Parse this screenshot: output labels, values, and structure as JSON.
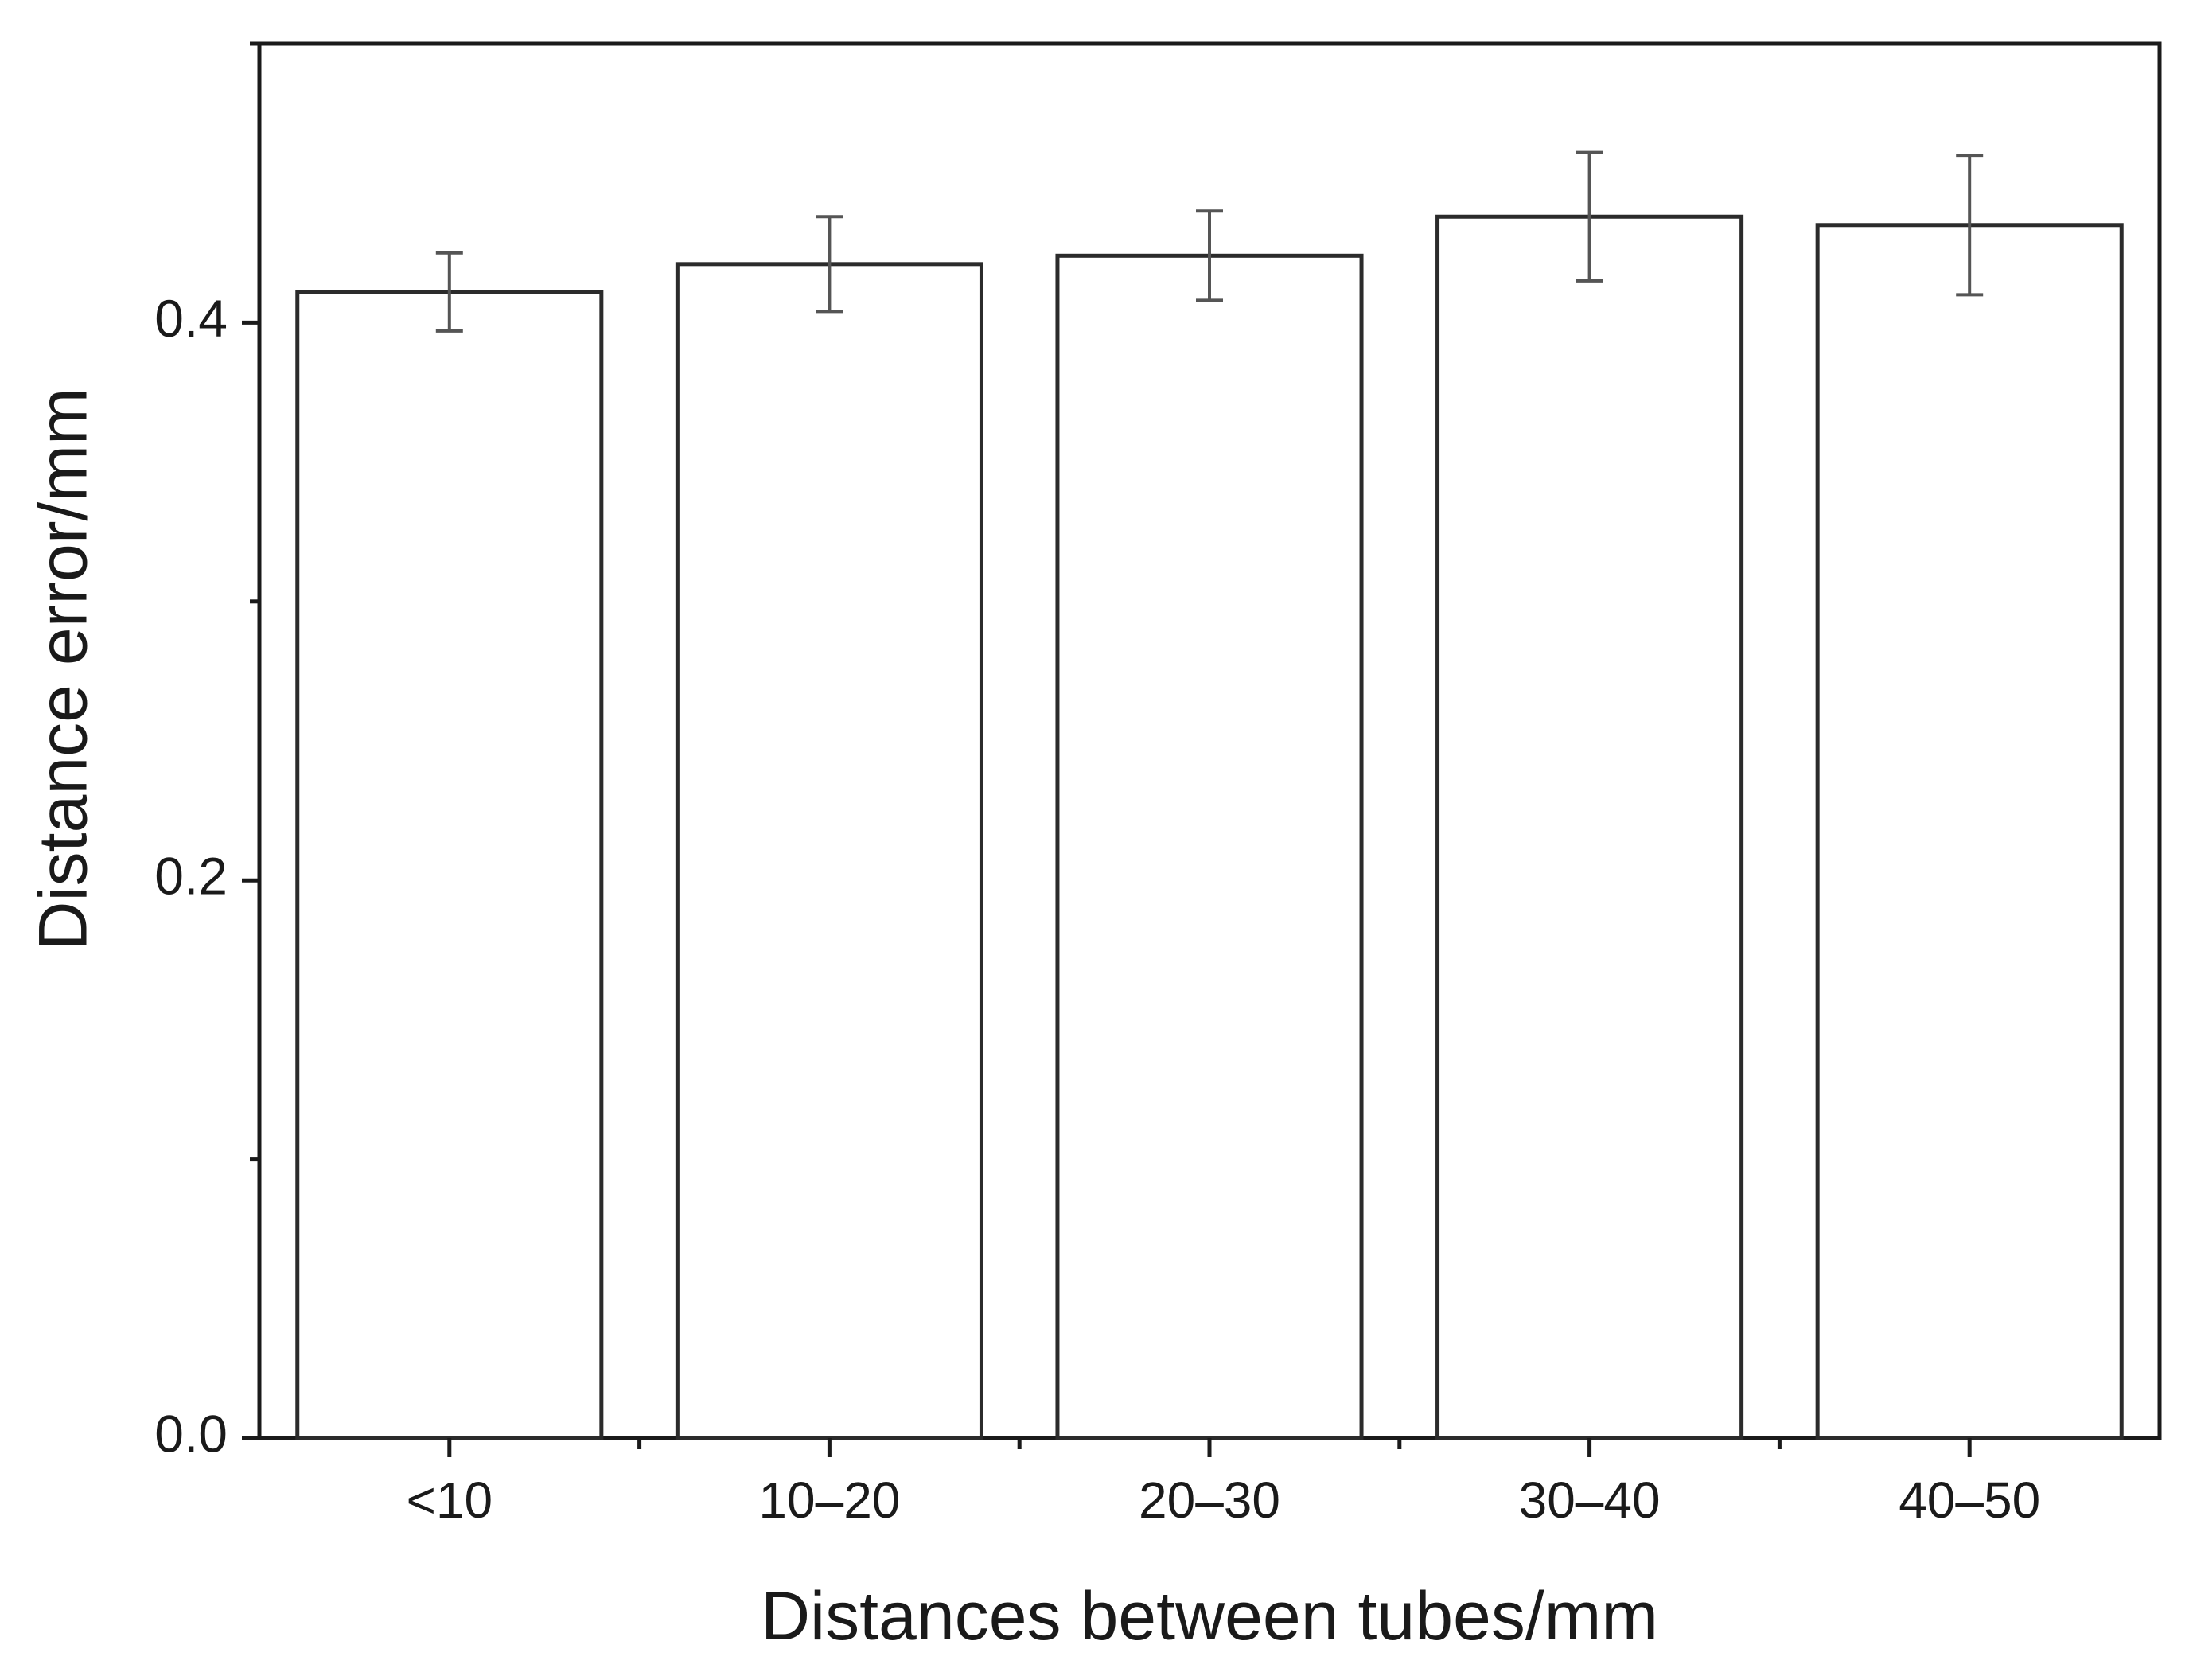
{
  "chart_data": {
    "type": "bar",
    "title": "",
    "xlabel": "Distances between tubes/mm",
    "ylabel": "Distance error/mm",
    "categories": [
      "<10",
      "10–20",
      "20–30",
      "30–40",
      "40–50"
    ],
    "values": [
      0.411,
      0.421,
      0.424,
      0.438,
      0.435
    ],
    "errors": [
      0.014,
      0.017,
      0.016,
      0.023,
      0.025
    ],
    "ylim": [
      0.0,
      0.5
    ],
    "yticks": [
      0.0,
      0.2,
      0.4
    ],
    "ytick_labels": [
      "0.0",
      "0.2",
      "0.4"
    ],
    "yminor_ticks": [
      0.1,
      0.3
    ],
    "grid": false,
    "legend": "none",
    "colors": {
      "bar_fill": "#ffffff",
      "bar_stroke": "#2b2b2b",
      "error_bar": "#555555",
      "axis": "#1a1a1a"
    }
  }
}
